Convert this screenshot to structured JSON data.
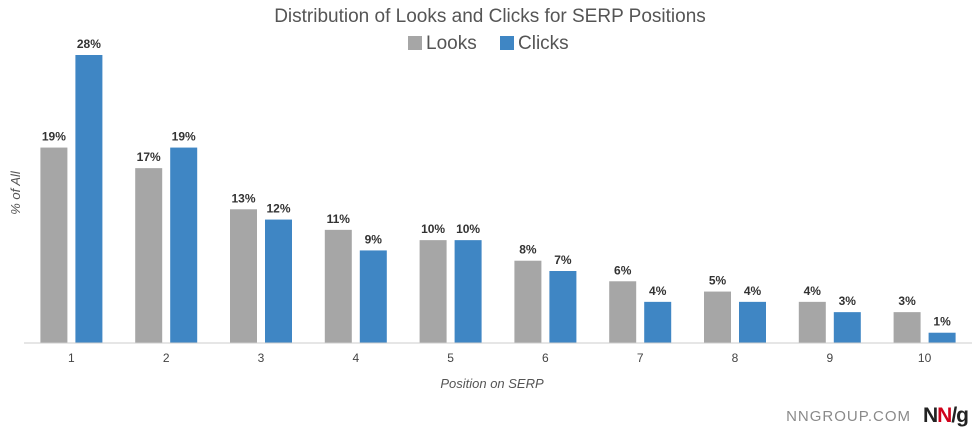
{
  "chart_data": {
    "type": "bar",
    "title": "Distribution of Looks and Clicks for SERP Positions",
    "xlabel": "Position on SERP",
    "ylabel": "% of All",
    "categories": [
      "1",
      "2",
      "3",
      "4",
      "5",
      "6",
      "7",
      "8",
      "9",
      "10"
    ],
    "series": [
      {
        "name": "Looks",
        "color": "#a6a6a6",
        "values": [
          19,
          17,
          13,
          11,
          10,
          8,
          6,
          5,
          4,
          3
        ]
      },
      {
        "name": "Clicks",
        "color": "#3f86c4",
        "values": [
          28,
          19,
          12,
          9,
          10,
          7,
          4,
          4,
          3,
          1
        ]
      }
    ],
    "value_suffix": "%",
    "ylim": [
      0,
      28
    ],
    "grid": false,
    "legend_position": "top-center"
  },
  "footer": {
    "site": "NNGROUP.COM",
    "logo_n1": "N",
    "logo_n2": "N",
    "logo_slash": "/",
    "logo_g": "g"
  }
}
